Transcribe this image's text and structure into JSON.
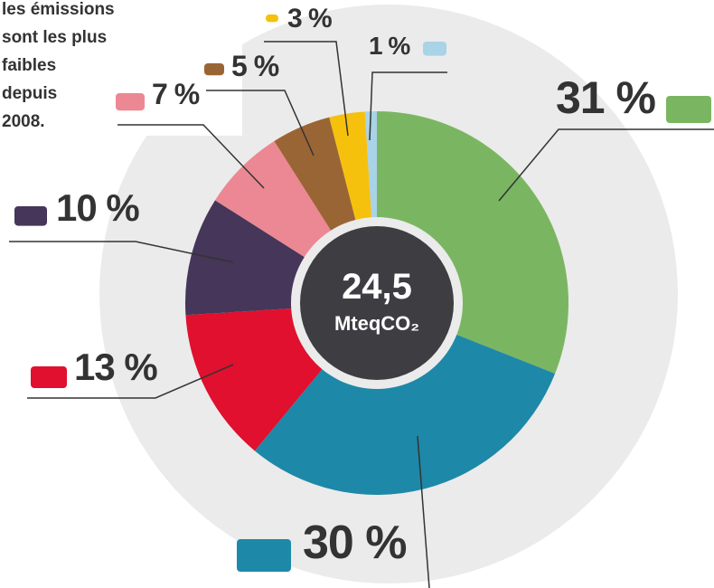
{
  "chart_data": {
    "type": "donut",
    "note_lines": [
      "les émissions",
      "sont les plus",
      "faibles",
      "depuis",
      "2008."
    ],
    "center_value": "24,5",
    "center_unit": "MteqCO₂",
    "values": [
      31,
      30,
      13,
      10,
      7,
      5,
      3,
      1
    ],
    "value_labels": [
      "31 %",
      "30 %",
      "13 %",
      "10 %",
      "7 %",
      "5 %",
      "3 %",
      "1 %"
    ],
    "colors": [
      "#7ab661",
      "#1e88a8",
      "#e0102e",
      "#45365a",
      "#ec8893",
      "#9a6535",
      "#f6c10c",
      "#a9d3e6"
    ]
  }
}
